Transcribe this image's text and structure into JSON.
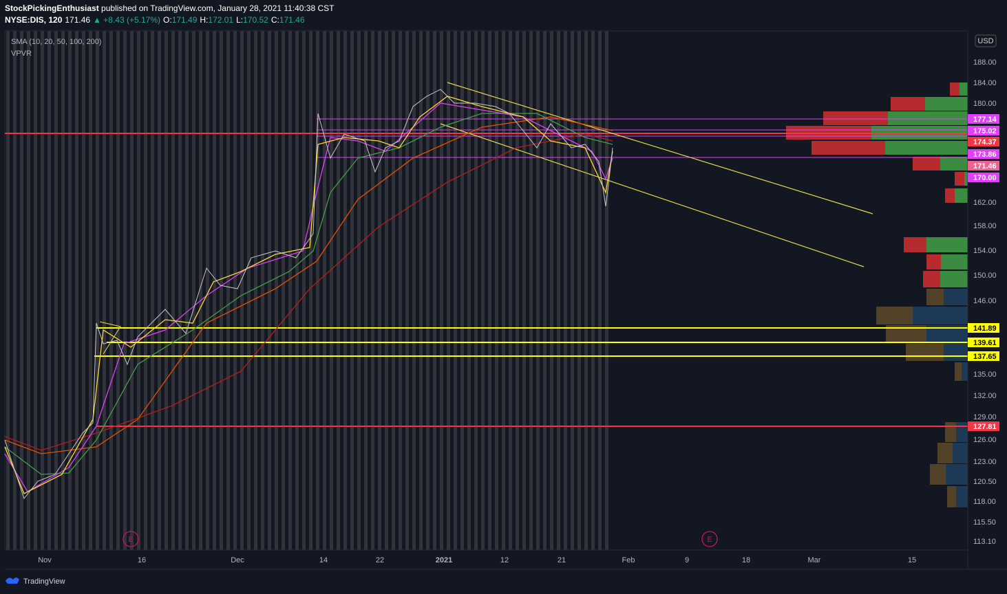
{
  "header": {
    "author": "StockPickingEnthusiast",
    "published": "published on TradingView.com, January 28, 2021 11:40:38 CST",
    "symbol": [
      {
        "text": "NYSE:DIS, 120",
        "color": "#ffffff"
      },
      {
        "text": "171.46",
        "color": "#ffffff"
      },
      {
        "text": "▲ +8.43 (+5.17%)",
        "color": "#26a69a"
      },
      {
        "text": "O:",
        "color": "#ffffff"
      },
      {
        "text": "171.49",
        "color": "#26a69a"
      },
      {
        "text": "H:",
        "color": "#ffffff"
      },
      {
        "text": "172.01",
        "color": "#26a69a"
      },
      {
        "text": "L:",
        "color": "#ffffff"
      },
      {
        "text": "170.52",
        "color": "#26a69a"
      },
      {
        "text": "C:",
        "color": "#ffffff"
      },
      {
        "text": "171.46",
        "color": "#26a69a"
      }
    ]
  },
  "legend": [
    "SMA (10, 20, 50, 100, 200)",
    "VPVR"
  ],
  "price_axis": {
    "currency": "USD",
    "ticks": [
      "188.00",
      "184.00",
      "180.00",
      "162.00",
      "158.00",
      "154.00",
      "150.00",
      "146.00",
      "135.00",
      "132.00",
      "129.00",
      "126.00",
      "123.00",
      "120.50",
      "118.00",
      "115.50",
      "113.10"
    ]
  },
  "price_tags": [
    {
      "label": "177.14",
      "color": "#e040fb",
      "text_color": "#ffffff"
    },
    {
      "label": "175.02",
      "color": "#e040fb",
      "text_color": "#ffffff"
    },
    {
      "label": "174.37",
      "color": "#f23645",
      "text_color": "#ffffff"
    },
    {
      "label": "173.86",
      "color": "#e040fb",
      "text_color": "#ffffff"
    },
    {
      "label": "171.46",
      "color": "#f06292",
      "text_color": "#ffffff"
    },
    {
      "label": "170.00",
      "color": "#e040fb",
      "text_color": "#ffffff"
    },
    {
      "label": "141.89",
      "color": "#ffff00",
      "text_color": "#000000"
    },
    {
      "label": "139.61",
      "color": "#ffff00",
      "text_color": "#000000"
    },
    {
      "label": "137.65",
      "color": "#ffff00",
      "text_color": "#000000"
    },
    {
      "label": "127.81",
      "color": "#f23645",
      "text_color": "#ffffff"
    }
  ],
  "time_axis": [
    "Nov",
    "16",
    "Dec",
    "14",
    "22",
    "2021",
    "12",
    "21",
    "Feb",
    "9",
    "18",
    "Mar",
    "15"
  ],
  "events": [
    "E",
    "E"
  ],
  "footer": "TradingView"
}
